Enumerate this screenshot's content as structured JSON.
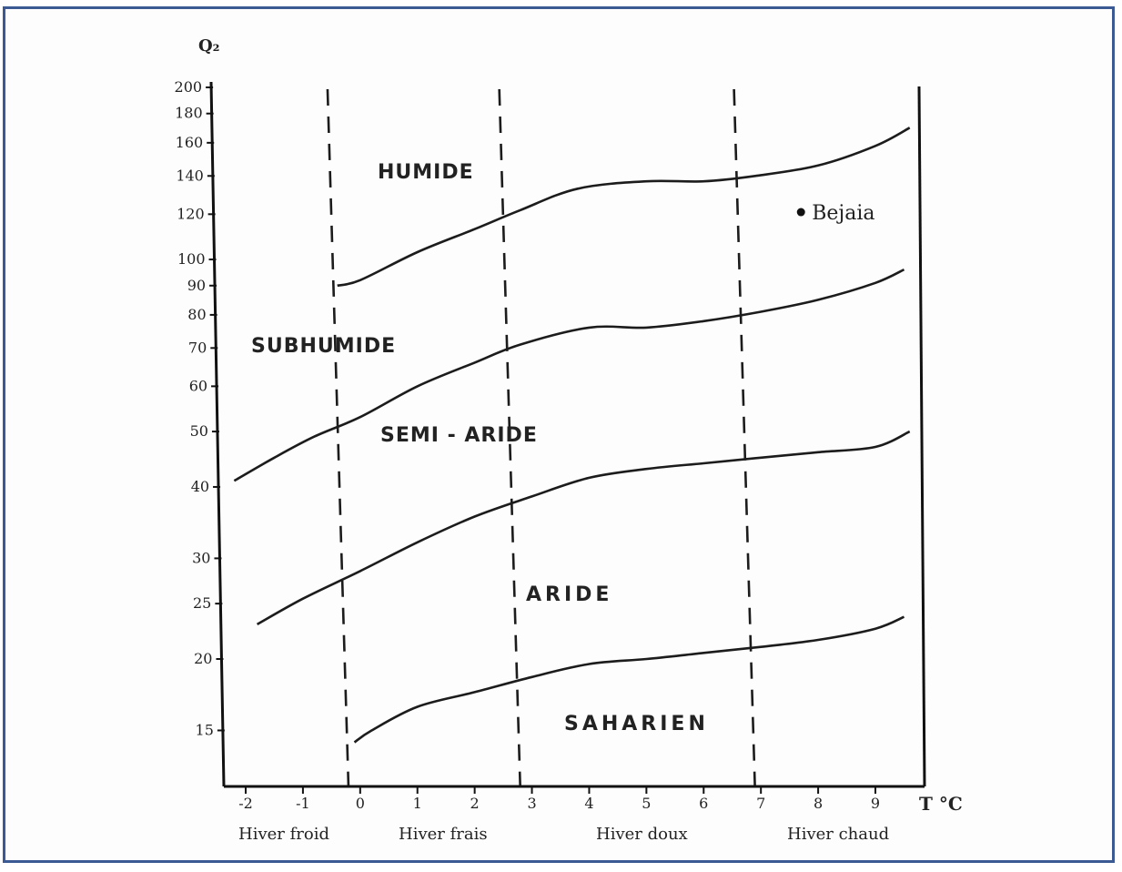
{
  "chart_data": {
    "type": "line",
    "ylabel": "Q₂",
    "xlabel": "T °C",
    "x_ticks": [
      -2,
      -1,
      0,
      1,
      2,
      3,
      4,
      5,
      6,
      7,
      8,
      9
    ],
    "y_ticks": [
      15,
      20,
      25,
      30,
      40,
      50,
      60,
      70,
      80,
      90,
      100,
      120,
      140,
      160,
      180,
      200
    ],
    "y_scale": "log",
    "zones": [
      "HUMIDE",
      "SUBHUMIDE",
      "SEMI - ARIDE",
      "ARIDE",
      "SAHARIEN"
    ],
    "winter_types": [
      "Hiver froid",
      "Hiver frais",
      "Hiver doux",
      "Hiver chaud"
    ],
    "dividers_x": [
      -0.3,
      2.7,
      6.8
    ],
    "station": {
      "name": "Bejaia",
      "x": 7.7,
      "y": 121
    },
    "boundaries": [
      {
        "x": [
          -0.4,
          0,
          1,
          2,
          2.8,
          3.8,
          5,
          6,
          6.9,
          8,
          9,
          9.6
        ],
        "y": [
          90,
          92,
          103,
          113,
          122,
          133,
          137,
          137,
          140,
          146,
          158,
          170
        ]
      },
      {
        "x": [
          -2.2,
          -1.5,
          -0.8,
          0,
          1,
          2,
          2.8,
          4,
          5,
          6,
          7,
          8,
          9,
          9.5
        ],
        "y": [
          41,
          45,
          49,
          53,
          60,
          66,
          71,
          76,
          76,
          78,
          81,
          85,
          91,
          96
        ]
      },
      {
        "x": [
          -1.8,
          -1,
          0,
          1,
          2,
          3,
          4,
          5,
          6,
          7,
          8,
          9,
          9.6
        ],
        "y": [
          23,
          25.5,
          28.5,
          32,
          35.5,
          38.5,
          41.5,
          43,
          44,
          45,
          46,
          47,
          50
        ]
      },
      {
        "x": [
          -0.1,
          0.2,
          1,
          2,
          3,
          4,
          5,
          6,
          7,
          8,
          9,
          9.5
        ],
        "y": [
          14.3,
          15,
          16.5,
          17.5,
          18.6,
          19.6,
          20,
          20.5,
          21,
          21.6,
          22.6,
          23.7
        ]
      }
    ]
  }
}
